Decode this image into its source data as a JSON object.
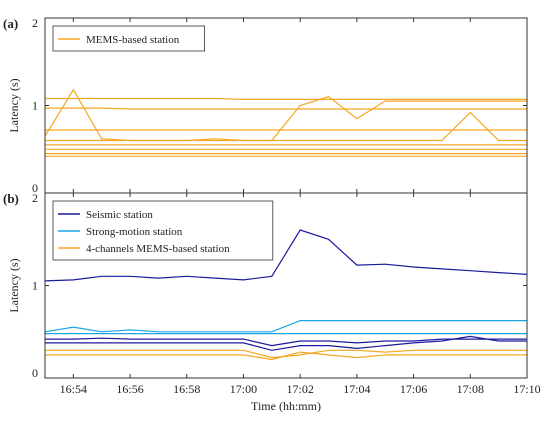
{
  "x_ticks": [
    "16:54",
    "16:56",
    "16:58",
    "17:00",
    "17:02",
    "17:04",
    "17:06",
    "17:08",
    "17:10"
  ],
  "x_label": "Time (hh:mm)",
  "chart_data": [
    {
      "type": "line",
      "panel_label": "(a)",
      "ylabel": "Latency (s)",
      "ylim": [
        0,
        2
      ],
      "yticks": [
        "0",
        "1",
        "2"
      ],
      "xlim": [
        "16:53",
        "17:10"
      ],
      "legend": {
        "placement": "top-left",
        "entries": [
          {
            "label": "MEMS-based station",
            "color": "#f5a623"
          }
        ]
      },
      "x": [
        "16:53",
        "16:54",
        "16:55",
        "16:56",
        "16:57",
        "16:58",
        "16:59",
        "17:00",
        "17:01",
        "17:02",
        "17:03",
        "17:04",
        "17:05",
        "17:06",
        "17:07",
        "17:08",
        "17:09",
        "17:10"
      ],
      "series": [
        {
          "color": "#f5a623",
          "values": [
            1.08,
            1.08,
            1.08,
            1.08,
            1.08,
            1.08,
            1.08,
            1.07,
            1.07,
            1.07,
            1.07,
            1.07,
            1.07,
            1.07,
            1.07,
            1.07,
            1.07,
            1.07
          ]
        },
        {
          "color": "#f5a623",
          "values": [
            0.65,
            1.18,
            0.62,
            0.6,
            0.6,
            0.6,
            0.62,
            0.6,
            0.6,
            1.0,
            1.1,
            0.85,
            1.05,
            1.05,
            1.05,
            1.05,
            1.05,
            1.05
          ]
        },
        {
          "color": "#f5a623",
          "values": [
            0.97,
            0.97,
            0.97,
            0.96,
            0.96,
            0.96,
            0.96,
            0.96,
            0.96,
            0.96,
            0.96,
            0.96,
            0.96,
            0.96,
            0.96,
            0.96,
            0.96,
            0.96
          ]
        },
        {
          "color": "#f5a623",
          "values": [
            0.72,
            0.72,
            0.72,
            0.72,
            0.72,
            0.72,
            0.72,
            0.72,
            0.72,
            0.72,
            0.72,
            0.72,
            0.72,
            0.72,
            0.72,
            0.72,
            0.72,
            0.72
          ]
        },
        {
          "color": "#f5a623",
          "values": [
            0.6,
            0.6,
            0.6,
            0.6,
            0.6,
            0.6,
            0.6,
            0.6,
            0.6,
            0.6,
            0.6,
            0.6,
            0.6,
            0.6,
            0.6,
            0.92,
            0.6,
            0.6
          ]
        },
        {
          "color": "#f5a623",
          "values": [
            0.55,
            0.55,
            0.55,
            0.55,
            0.55,
            0.55,
            0.55,
            0.55,
            0.55,
            0.55,
            0.55,
            0.55,
            0.55,
            0.55,
            0.55,
            0.55,
            0.55,
            0.55
          ]
        },
        {
          "color": "#f5a623",
          "values": [
            0.5,
            0.5,
            0.5,
            0.5,
            0.5,
            0.5,
            0.5,
            0.5,
            0.5,
            0.5,
            0.5,
            0.5,
            0.5,
            0.5,
            0.5,
            0.5,
            0.5,
            0.5
          ]
        },
        {
          "color": "#f5a623",
          "values": [
            0.45,
            0.45,
            0.45,
            0.45,
            0.45,
            0.45,
            0.45,
            0.45,
            0.45,
            0.45,
            0.45,
            0.45,
            0.45,
            0.45,
            0.45,
            0.45,
            0.45,
            0.45
          ]
        },
        {
          "color": "#f5a623",
          "values": [
            0.42,
            0.42,
            0.42,
            0.42,
            0.42,
            0.42,
            0.42,
            0.42,
            0.42,
            0.42,
            0.42,
            0.42,
            0.42,
            0.42,
            0.42,
            0.42,
            0.42,
            0.42
          ]
        }
      ]
    },
    {
      "type": "line",
      "panel_label": "(b)",
      "ylabel": "Latency (s)",
      "ylim": [
        0,
        2
      ],
      "yticks": [
        "0",
        "1",
        "2"
      ],
      "xlim": [
        "16:53",
        "17:10"
      ],
      "legend": {
        "placement": "top-left",
        "entries": [
          {
            "label": "Seismic station",
            "color": "#1a1a9c"
          },
          {
            "label": "Strong-motion station",
            "color": "#1aa6e6"
          },
          {
            "label": "4-channels MEMS-based station",
            "color": "#f5a623"
          }
        ]
      },
      "x": [
        "16:53",
        "16:54",
        "16:55",
        "16:56",
        "16:57",
        "16:58",
        "16:59",
        "17:00",
        "17:01",
        "17:02",
        "17:03",
        "17:04",
        "17:05",
        "17:06",
        "17:07",
        "17:08",
        "17:09",
        "17:10"
      ],
      "series": [
        {
          "color": "#1a1a9c",
          "values": [
            1.05,
            1.06,
            1.1,
            1.1,
            1.08,
            1.1,
            1.08,
            1.06,
            1.1,
            1.6,
            1.5,
            1.22,
            1.23,
            1.2,
            1.18,
            1.16,
            1.14,
            1.12
          ]
        },
        {
          "color": "#1aa6e6",
          "values": [
            0.5,
            0.55,
            0.5,
            0.52,
            0.5,
            0.5,
            0.5,
            0.5,
            0.5,
            0.62,
            0.62,
            0.62,
            0.62,
            0.62,
            0.62,
            0.62,
            0.62,
            0.62
          ]
        },
        {
          "color": "#1aa6e6",
          "values": [
            0.48,
            0.48,
            0.48,
            0.48,
            0.48,
            0.48,
            0.48,
            0.48,
            0.48,
            0.48,
            0.48,
            0.48,
            0.48,
            0.48,
            0.48,
            0.48,
            0.48,
            0.48
          ]
        },
        {
          "color": "#1a1a9c",
          "values": [
            0.42,
            0.42,
            0.43,
            0.42,
            0.42,
            0.42,
            0.42,
            0.42,
            0.35,
            0.4,
            0.4,
            0.38,
            0.4,
            0.4,
            0.42,
            0.42,
            0.42,
            0.42
          ]
        },
        {
          "color": "#1a1a9c",
          "values": [
            0.38,
            0.38,
            0.38,
            0.38,
            0.38,
            0.38,
            0.38,
            0.38,
            0.3,
            0.35,
            0.35,
            0.32,
            0.35,
            0.38,
            0.4,
            0.45,
            0.4,
            0.4
          ]
        },
        {
          "color": "#f5a623",
          "values": [
            0.3,
            0.3,
            0.3,
            0.3,
            0.3,
            0.3,
            0.3,
            0.3,
            0.22,
            0.25,
            0.3,
            0.3,
            0.28,
            0.3,
            0.3,
            0.3,
            0.3,
            0.3
          ]
        },
        {
          "color": "#f5a623",
          "values": [
            0.25,
            0.25,
            0.25,
            0.25,
            0.25,
            0.25,
            0.25,
            0.25,
            0.2,
            0.28,
            0.25,
            0.22,
            0.25,
            0.25,
            0.25,
            0.25,
            0.25,
            0.25
          ]
        }
      ]
    }
  ]
}
